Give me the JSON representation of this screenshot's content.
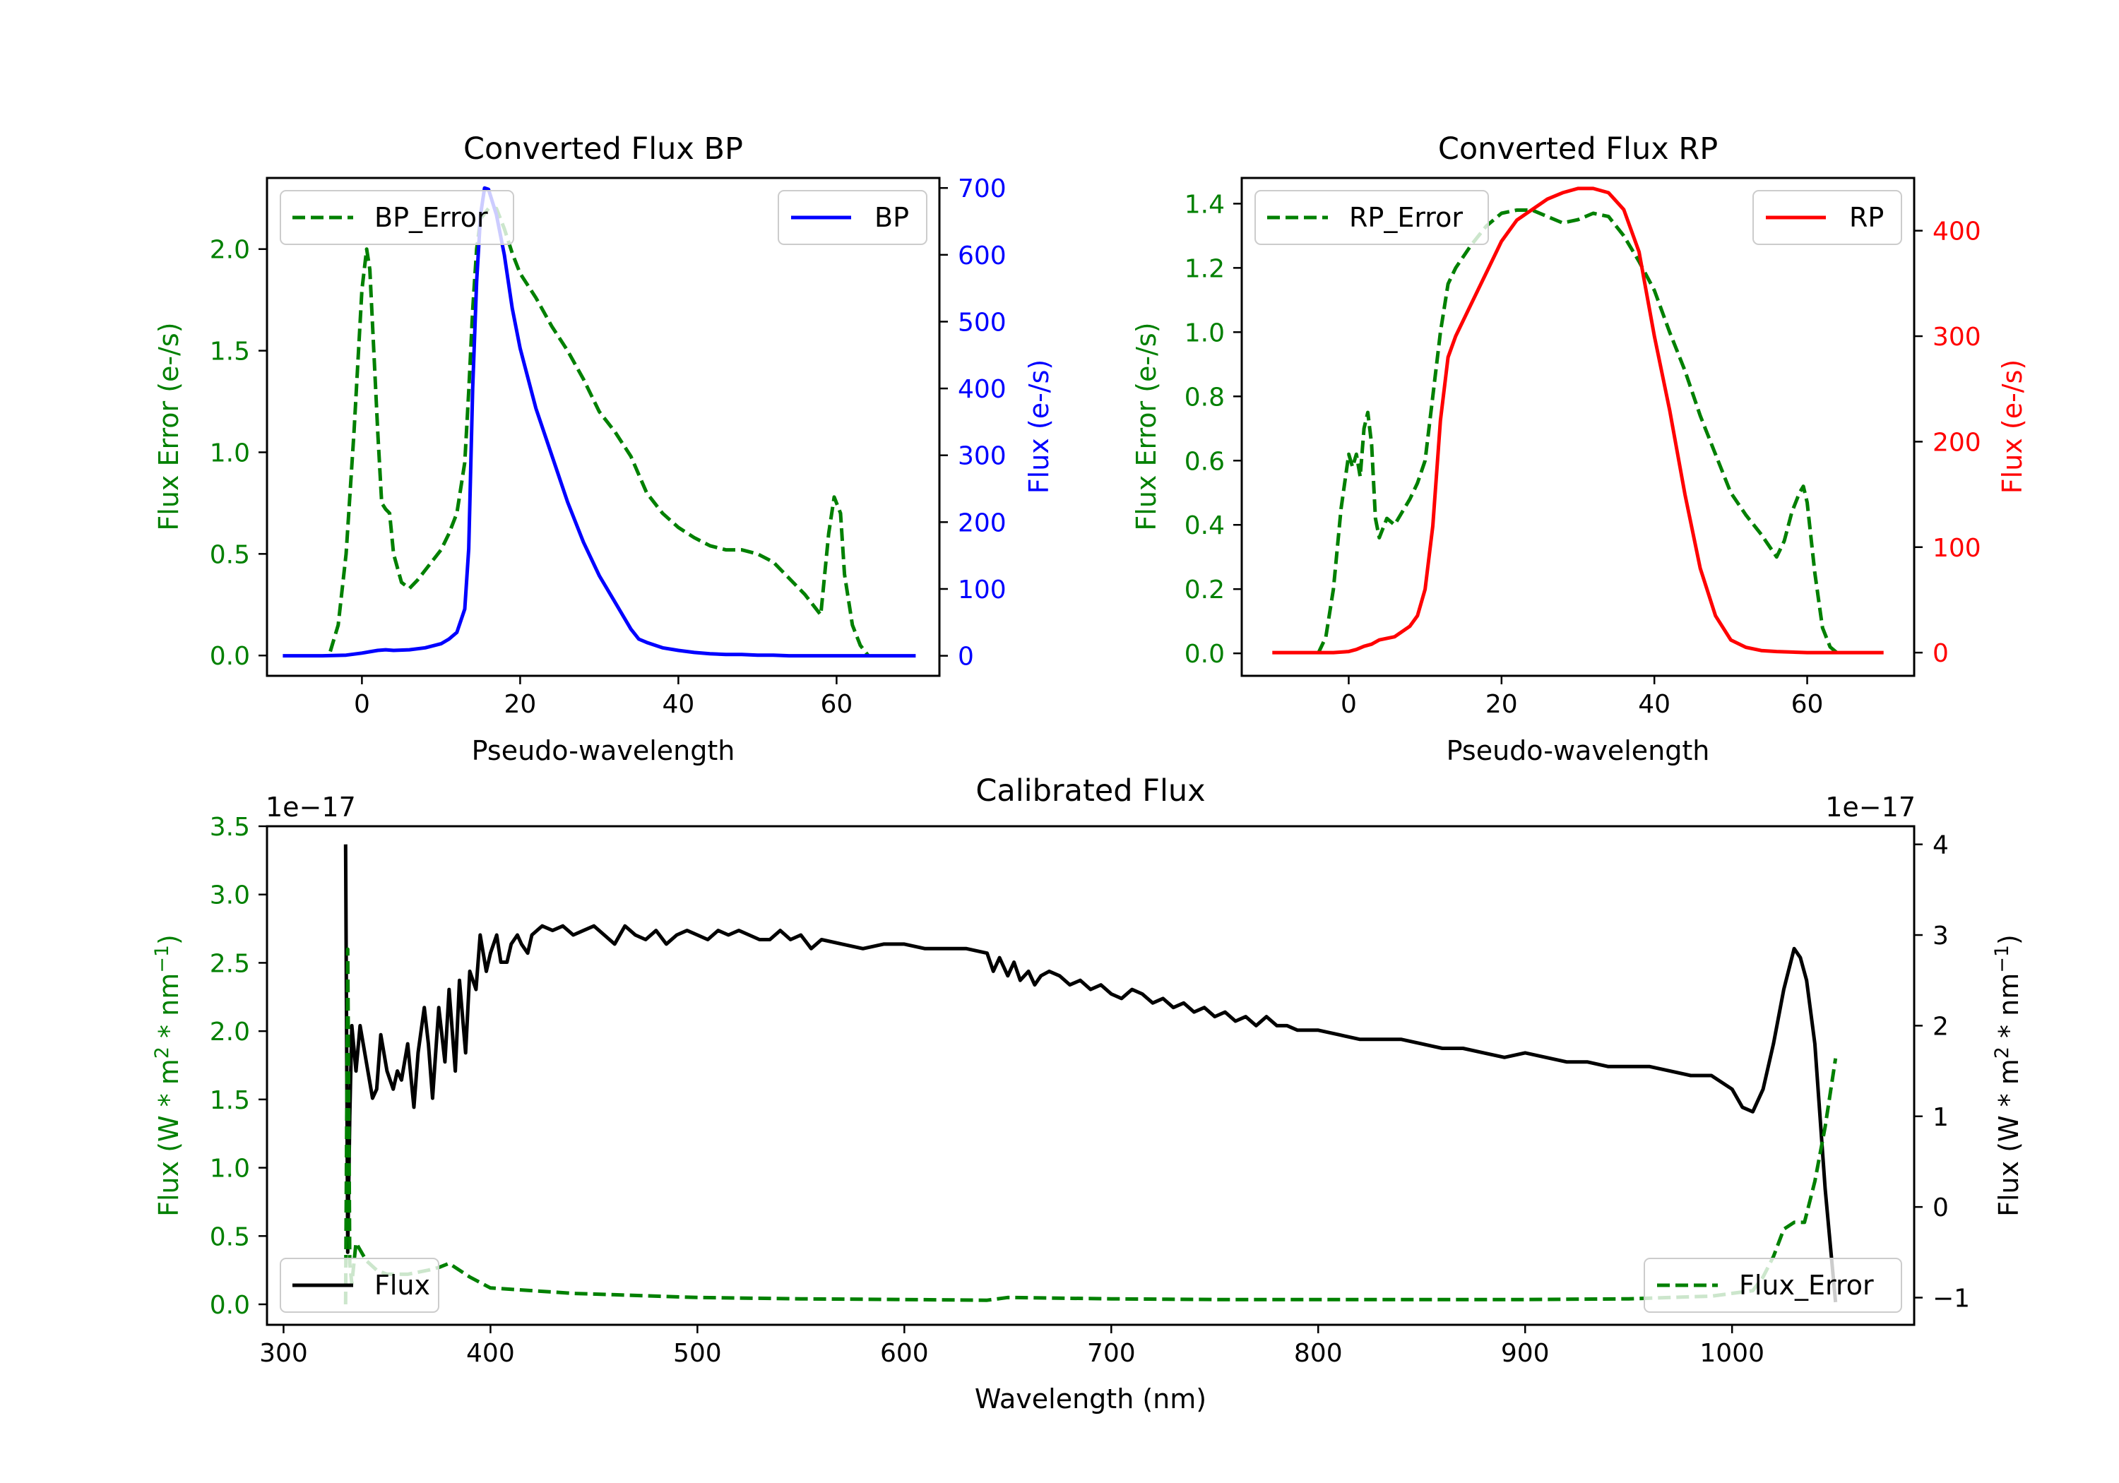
{
  "colors": {
    "green": "#008000",
    "blue": "#0000ff",
    "red": "#ff0000",
    "black": "#000000"
  },
  "chart_data": [
    {
      "type": "line",
      "title": "Converted Flux BP",
      "xlabel": "Pseudo-wavelength",
      "ylabel_left": "Flux Error (e-/s)",
      "ylabel_right": "Flux (e-/s)",
      "xlim": [
        -12,
        73
      ],
      "ylim_left": [
        -0.1,
        2.35
      ],
      "ylim_right": [
        -30,
        715
      ],
      "xticks": [
        0,
        20,
        40,
        60
      ],
      "yticks_left": [
        "0.0",
        "0.5",
        "1.0",
        "1.5",
        "2.0"
      ],
      "yticks_right": [
        0,
        100,
        200,
        300,
        400,
        500,
        600,
        700
      ],
      "legend_left": "BP_Error",
      "legend_right": "BP",
      "series": [
        {
          "name": "BP_Error",
          "axis": "left",
          "style": "dashed",
          "color": "#008000",
          "x": [
            -4,
            -3,
            -2,
            -1,
            0,
            0.6,
            1,
            1.5,
            2,
            2.5,
            3,
            3.5,
            4,
            5,
            6,
            7,
            8,
            9,
            10,
            11,
            12,
            13,
            13.5,
            14,
            14.5,
            15,
            16,
            17,
            18,
            19,
            20,
            22,
            24,
            26,
            28,
            30,
            32,
            34,
            36,
            38,
            40,
            42,
            44,
            46,
            48,
            50,
            52,
            54,
            56,
            57,
            58,
            59,
            59.7,
            60.5,
            61,
            62,
            63,
            64
          ],
          "values": [
            0.02,
            0.15,
            0.5,
            1.1,
            1.8,
            2.0,
            1.9,
            1.5,
            1.1,
            0.75,
            0.72,
            0.7,
            0.5,
            0.36,
            0.33,
            0.37,
            0.42,
            0.47,
            0.52,
            0.6,
            0.7,
            0.95,
            1.3,
            1.7,
            2.0,
            2.15,
            2.2,
            2.2,
            2.1,
            1.98,
            1.88,
            1.76,
            1.62,
            1.5,
            1.36,
            1.2,
            1.1,
            0.98,
            0.8,
            0.7,
            0.63,
            0.58,
            0.54,
            0.52,
            0.52,
            0.5,
            0.46,
            0.38,
            0.3,
            0.25,
            0.2,
            0.6,
            0.78,
            0.7,
            0.4,
            0.15,
            0.05,
            0.0
          ]
        },
        {
          "name": "BP",
          "axis": "right",
          "style": "solid",
          "color": "#0000ff",
          "x": [
            -10,
            -5,
            -2,
            0,
            1,
            2,
            3,
            4,
            6,
            8,
            10,
            11,
            12,
            13,
            13.5,
            14,
            14.5,
            15,
            15.5,
            16,
            17,
            18,
            19,
            20,
            22,
            24,
            26,
            28,
            30,
            32,
            34,
            35,
            36,
            38,
            40,
            42,
            44,
            46,
            48,
            50,
            52,
            54,
            56,
            60,
            65,
            70
          ],
          "values": [
            0,
            0,
            1,
            4,
            6,
            8,
            9,
            8,
            9,
            12,
            18,
            25,
            35,
            70,
            160,
            400,
            560,
            660,
            700,
            698,
            660,
            600,
            520,
            460,
            370,
            300,
            230,
            170,
            120,
            80,
            40,
            25,
            20,
            12,
            8,
            5,
            3,
            2,
            2,
            1,
            1,
            0,
            0,
            0,
            0,
            0
          ]
        }
      ]
    },
    {
      "type": "line",
      "title": "Converted Flux RP",
      "xlabel": "Pseudo-wavelength",
      "ylabel_left": "Flux Error (e-/s)",
      "ylabel_right": "Flux (e-/s)",
      "xlim": [
        -14,
        74
      ],
      "ylim_left": [
        -0.07,
        1.48
      ],
      "ylim_right": [
        -22,
        450
      ],
      "xticks": [
        0,
        20,
        40,
        60
      ],
      "yticks_left": [
        "0.0",
        "0.2",
        "0.4",
        "0.6",
        "0.8",
        "1.0",
        "1.2",
        "1.4"
      ],
      "yticks_right": [
        0,
        100,
        200,
        300,
        400
      ],
      "legend_left": "RP_Error",
      "legend_right": "RP",
      "series": [
        {
          "name": "RP_Error",
          "axis": "left",
          "style": "dashed",
          "color": "#008000",
          "x": [
            -4,
            -3,
            -2,
            -1,
            0,
            0.5,
            1,
            1.5,
            2,
            2.5,
            3,
            3.5,
            4,
            5,
            6,
            7,
            8,
            9,
            10,
            11,
            12,
            13,
            14,
            16,
            18,
            20,
            22,
            24,
            26,
            28,
            30,
            32,
            34,
            36,
            38,
            40,
            42,
            44,
            46,
            48,
            50,
            52,
            54,
            56,
            57,
            58,
            59,
            59.5,
            60,
            61,
            62,
            63,
            64
          ],
          "values": [
            0.0,
            0.05,
            0.2,
            0.45,
            0.62,
            0.58,
            0.62,
            0.55,
            0.7,
            0.75,
            0.65,
            0.42,
            0.36,
            0.42,
            0.4,
            0.44,
            0.48,
            0.53,
            0.6,
            0.8,
            1.0,
            1.15,
            1.2,
            1.27,
            1.33,
            1.37,
            1.38,
            1.38,
            1.36,
            1.34,
            1.35,
            1.37,
            1.36,
            1.3,
            1.22,
            1.13,
            1.0,
            0.88,
            0.74,
            0.62,
            0.5,
            0.43,
            0.37,
            0.3,
            0.35,
            0.44,
            0.5,
            0.52,
            0.47,
            0.25,
            0.08,
            0.02,
            0.0
          ]
        },
        {
          "name": "RP",
          "axis": "right",
          "style": "solid",
          "color": "#ff0000",
          "x": [
            -10,
            -5,
            -2,
            0,
            1,
            2,
            3,
            4,
            6,
            8,
            9,
            10,
            11,
            12,
            13,
            14,
            16,
            18,
            20,
            22,
            24,
            26,
            28,
            30,
            32,
            34,
            36,
            38,
            40,
            42,
            44,
            46,
            48,
            50,
            52,
            54,
            56,
            60,
            65,
            70
          ],
          "values": [
            0,
            0,
            0,
            1,
            3,
            6,
            8,
            12,
            15,
            25,
            35,
            60,
            120,
            220,
            280,
            300,
            330,
            360,
            390,
            410,
            420,
            430,
            436,
            440,
            440,
            436,
            420,
            380,
            300,
            230,
            150,
            80,
            35,
            12,
            5,
            2,
            1,
            0,
            0,
            0
          ]
        }
      ]
    },
    {
      "type": "line",
      "title": "Calibrated Flux",
      "xlabel": "Wavelength (nm)",
      "ylabel_left": "Flux (W * m",
      "ylabel_right": "Flux (W * m",
      "ylabel_sup": [
        "2",
        "−1"
      ],
      "ylabel_mid": " * nm",
      "offset_left": "1e−17",
      "offset_right": "1e−17",
      "xlim": [
        292,
        1088
      ],
      "ylim_left": [
        -0.15,
        3.5
      ],
      "ylim_right": [
        -1.3,
        4.2
      ],
      "xticks": [
        300,
        400,
        500,
        600,
        700,
        800,
        900,
        1000
      ],
      "yticks_left": [
        "0.0",
        "0.5",
        "1.0",
        "1.5",
        "2.0",
        "2.5",
        "3.0",
        "3.5"
      ],
      "yticks_right": [
        "−1",
        "0",
        "1",
        "2",
        "3",
        "4"
      ],
      "legend_left": "Flux",
      "legend_right": "Flux_Error",
      "series": [
        {
          "name": "Flux",
          "axis": "right",
          "style": "solid",
          "color": "#000000",
          "x": [
            330,
            331,
            332,
            333,
            335,
            337,
            340,
            343,
            345,
            347,
            350,
            353,
            355,
            357,
            360,
            363,
            365,
            368,
            370,
            372,
            375,
            378,
            380,
            383,
            385,
            388,
            390,
            393,
            395,
            398,
            400,
            403,
            405,
            408,
            410,
            413,
            415,
            418,
            420,
            425,
            430,
            435,
            440,
            445,
            450,
            455,
            460,
            465,
            470,
            475,
            480,
            485,
            490,
            495,
            500,
            505,
            510,
            515,
            520,
            525,
            530,
            535,
            540,
            545,
            550,
            555,
            560,
            570,
            580,
            590,
            600,
            610,
            620,
            630,
            640,
            643,
            646,
            650,
            653,
            656,
            660,
            663,
            666,
            670,
            675,
            680,
            685,
            690,
            695,
            700,
            705,
            710,
            715,
            720,
            725,
            730,
            735,
            740,
            745,
            750,
            755,
            760,
            765,
            770,
            775,
            780,
            785,
            790,
            800,
            810,
            820,
            830,
            840,
            850,
            860,
            870,
            880,
            890,
            900,
            910,
            920,
            930,
            940,
            950,
            960,
            970,
            980,
            990,
            1000,
            1005,
            1010,
            1015,
            1020,
            1025,
            1030,
            1033,
            1036,
            1040,
            1045,
            1050
          ],
          "values": [
            4.0,
            -0.5,
            1.0,
            2.0,
            1.5,
            2.0,
            1.6,
            1.2,
            1.3,
            1.9,
            1.5,
            1.3,
            1.5,
            1.4,
            1.8,
            1.1,
            1.7,
            2.2,
            1.8,
            1.2,
            2.2,
            1.6,
            2.4,
            1.5,
            2.5,
            1.7,
            2.6,
            2.4,
            3.0,
            2.6,
            2.8,
            3.0,
            2.7,
            2.7,
            2.9,
            3.0,
            2.9,
            2.8,
            3.0,
            3.1,
            3.05,
            3.1,
            3.0,
            3.05,
            3.1,
            3.0,
            2.9,
            3.1,
            3.0,
            2.95,
            3.05,
            2.9,
            3.0,
            3.05,
            3.0,
            2.95,
            3.05,
            3.0,
            3.05,
            3.0,
            2.95,
            2.95,
            3.05,
            2.95,
            3.0,
            2.85,
            2.95,
            2.9,
            2.85,
            2.9,
            2.9,
            2.85,
            2.85,
            2.85,
            2.8,
            2.6,
            2.75,
            2.55,
            2.7,
            2.5,
            2.6,
            2.45,
            2.55,
            2.6,
            2.55,
            2.45,
            2.5,
            2.4,
            2.45,
            2.35,
            2.3,
            2.4,
            2.35,
            2.25,
            2.3,
            2.2,
            2.25,
            2.15,
            2.2,
            2.1,
            2.15,
            2.05,
            2.1,
            2.0,
            2.1,
            2.0,
            2.0,
            1.95,
            1.95,
            1.9,
            1.85,
            1.85,
            1.85,
            1.8,
            1.75,
            1.75,
            1.7,
            1.65,
            1.7,
            1.65,
            1.6,
            1.6,
            1.55,
            1.55,
            1.55,
            1.5,
            1.45,
            1.45,
            1.3,
            1.1,
            1.05,
            1.3,
            1.8,
            2.4,
            2.85,
            2.75,
            2.5,
            1.8,
            0.2,
            -1.05
          ]
        },
        {
          "name": "Flux_Error",
          "axis": "left",
          "style": "dashed",
          "color": "#008000",
          "x": [
            330,
            331,
            332,
            333,
            335,
            340,
            345,
            350,
            360,
            370,
            375,
            380,
            390,
            400,
            420,
            440,
            460,
            480,
            500,
            550,
            600,
            640,
            650,
            700,
            750,
            800,
            850,
            900,
            950,
            990,
            1010,
            1015,
            1020,
            1025,
            1030,
            1035,
            1040,
            1045,
            1050
          ],
          "values": [
            0.0,
            2.6,
            0.3,
            0.15,
            0.45,
            0.32,
            0.25,
            0.22,
            0.22,
            0.25,
            0.27,
            0.3,
            0.2,
            0.12,
            0.1,
            0.08,
            0.07,
            0.06,
            0.05,
            0.04,
            0.035,
            0.03,
            0.05,
            0.04,
            0.035,
            0.035,
            0.035,
            0.035,
            0.04,
            0.06,
            0.1,
            0.2,
            0.35,
            0.55,
            0.6,
            0.6,
            0.9,
            1.3,
            1.8
          ]
        }
      ]
    }
  ]
}
